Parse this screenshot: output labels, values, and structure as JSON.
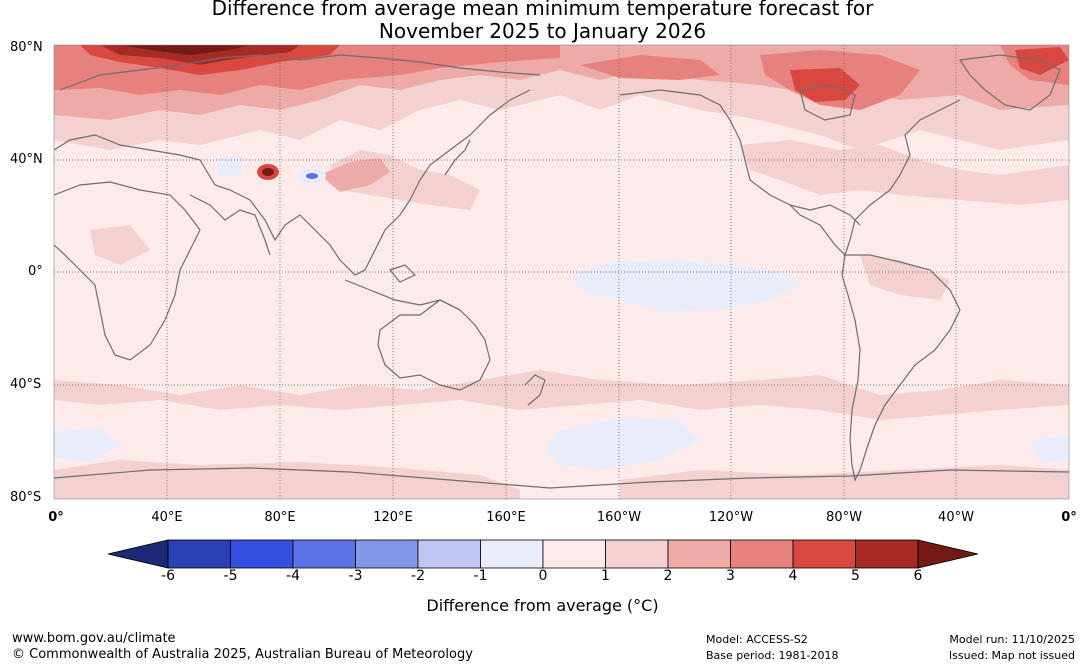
{
  "title": {
    "line1": "Difference from average mean minimum temperature forecast for",
    "line2": "November 2025 to January 2026"
  },
  "map": {
    "lat_labels": [
      "80°N",
      "40°N",
      "0°",
      "40°S",
      "80°S"
    ],
    "lon_labels": [
      "0°",
      "40°E",
      "80°E",
      "120°E",
      "160°E",
      "160°W",
      "120°W",
      "80°W",
      "40°W",
      "0°"
    ]
  },
  "colorbar": {
    "ticks": [
      "-6",
      "-5",
      "-4",
      "-3",
      "-2",
      "-1",
      "0",
      "1",
      "2",
      "3",
      "4",
      "5",
      "6"
    ],
    "colors": [
      "#1c2978",
      "#2a40b5",
      "#3350e0",
      "#5b73e6",
      "#8597eb",
      "#c0c8f2",
      "#e9ecfb",
      "#fcebea",
      "#f4d0d0",
      "#eeaaa7",
      "#e6817d",
      "#d94840",
      "#a82a24",
      "#741a14"
    ],
    "label": "Difference from average (°C)"
  },
  "footer": {
    "website": "www.bom.gov.au/climate",
    "copyright": "© Commonwealth of Australia 2025, Australian Bureau of Meteorology",
    "model": "Model: ACCESS-S2",
    "base_period": "Base period: 1981-2018",
    "model_run": "Model run: 11/10/2025",
    "issued": "Issued: Map not issued"
  }
}
